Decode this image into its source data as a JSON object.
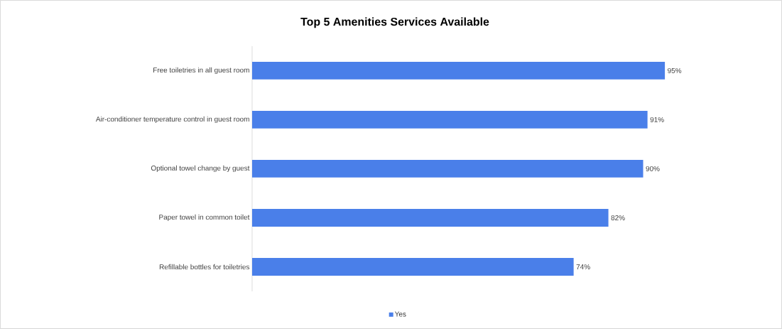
{
  "chart_data": {
    "type": "bar",
    "orientation": "horizontal",
    "title": "Top 5 Amenities Services Available",
    "categories": [
      "Free toiletries in all guest room",
      "Air-conditioner temperature control in guest room",
      "Optional towel change by guest",
      "Paper towel in common toilet",
      "Refillable bottles for toiletries"
    ],
    "series": [
      {
        "name": "Yes",
        "color": "#4a7fe9",
        "values": [
          95,
          91,
          90,
          82,
          74
        ],
        "value_labels": [
          "95%",
          "91%",
          "90%",
          "82%",
          "74%"
        ]
      }
    ],
    "legend": "bottom"
  }
}
